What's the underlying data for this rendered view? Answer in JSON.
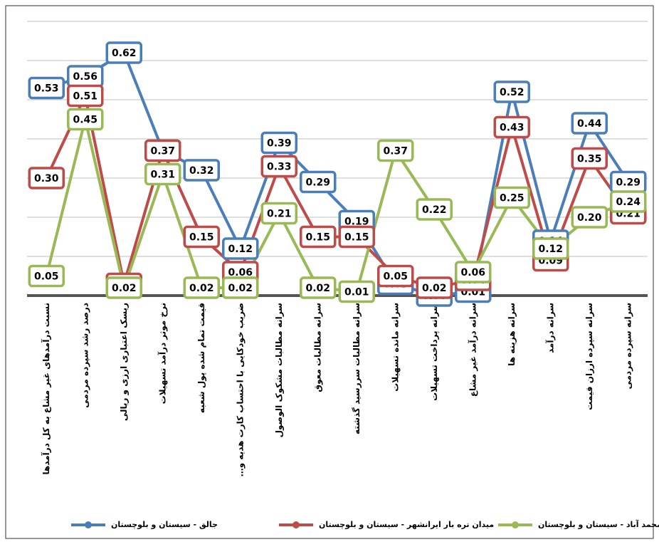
{
  "chart_data": {
    "type": "line",
    "categories": [
      "نسبت درآمدهای غیر مشاع به کل درآمدها",
      "درصد رشد سپرده مردمی",
      "ریسک اعتباری ارزی و ریالی",
      "نرخ موثر درآمد تسهیلات",
      "قیمت تمام شده پول شعبه",
      "ضریب خودکایی با احتساب کارت هدیه و…",
      "سرانه مطالبات مشکوک الوصول",
      "سرانه مطالبات معوق",
      "سرانه مطالبات سررسید گذشته",
      "سرانه مانده تسهیلات",
      "سرانه پرداخت تسهیلات",
      "سرانه درآمد غیر مشاع",
      "سرانه هزینه ها",
      "سرانه درآمد",
      "سرانه سپرده ارزان قیمت",
      "سرانه سپرده مردمی"
    ],
    "series": [
      {
        "name": "جالق - سیستان و بلوچستان",
        "color": "#4a7ebb",
        "values": [
          0.53,
          0.56,
          0.62,
          0.37,
          0.32,
          0.12,
          0.39,
          0.29,
          0.19,
          0.03,
          0.0,
          0.01,
          0.52,
          0.14,
          0.44,
          0.29
        ],
        "value_labels": [
          "0.53",
          "0.56",
          "0.62",
          "0.37",
          "0.32",
          "0.12",
          "0.39",
          "0.29",
          "0.19",
          "0.03",
          "0.00",
          "0.01",
          "0.52",
          "0.14",
          "0.44",
          "0.29"
        ]
      },
      {
        "name": "میدان تره بار ایرانشهر - سیستان و بلوچستان",
        "color": "#be4b48",
        "values": [
          0.3,
          0.51,
          0.03,
          0.37,
          0.15,
          0.06,
          0.33,
          0.15,
          0.15,
          0.05,
          0.02,
          0.04,
          0.43,
          0.09,
          0.35,
          0.21
        ],
        "value_labels": [
          "0.30",
          "0.51",
          "0.03",
          "0.37",
          "0.15",
          "0.06",
          "0.33",
          "0.15",
          "0.15",
          "0.05",
          "0.02",
          "0.04",
          "0.43",
          "0.09",
          "0.35",
          "0.21"
        ]
      },
      {
        "name": "محمد آباد - سیستان و بلوچستان",
        "color": "#98b954",
        "values": [
          0.05,
          0.45,
          0.02,
          0.31,
          0.02,
          0.02,
          0.21,
          0.02,
          0.01,
          0.37,
          0.22,
          0.06,
          0.25,
          0.12,
          0.2,
          0.24
        ],
        "value_labels": [
          "0.05",
          "0.45",
          "0.02",
          "0.31",
          "0.02",
          "0.02",
          "0.21",
          "0.02",
          "0.01",
          "0.37",
          "0.22",
          "0.06",
          "0.25",
          "0.12",
          "0.20",
          "0.24"
        ]
      }
    ],
    "ylim": [
      0,
      0.7
    ],
    "yticks": [
      0,
      0.1,
      0.2,
      0.3,
      0.4,
      0.5,
      0.6,
      0.7
    ],
    "grid": true
  }
}
